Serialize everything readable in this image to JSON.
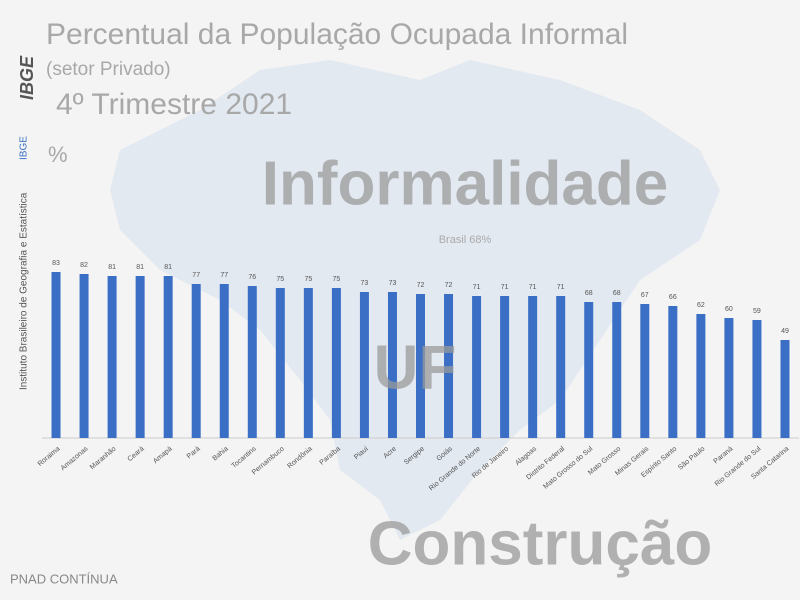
{
  "chart_data": {
    "type": "bar",
    "title": "Percentual da População Ocupada Informal",
    "subtitle": "(setor Privado)",
    "period": "4º Trimestre 2021",
    "y_label": "%",
    "annotation": "Brasil 68%",
    "overlay_texts": [
      "Informalidade",
      "UF",
      "Construção"
    ],
    "logo": "IBGE",
    "side_text": "Instituto Brasileiro de Geografia e Estatística",
    "side_logo": "IBGE",
    "footer": "PNAD CONTÍNUA",
    "categories": [
      "Roraima",
      "Amazonas",
      "Maranhão",
      "Ceará",
      "Amapá",
      "Pará",
      "Bahia",
      "Tocantins",
      "Pernambuco",
      "Rondônia",
      "Paraíba",
      "Piauí",
      "Acre",
      "Sergipe",
      "Goiás",
      "Rio Grande do Norte",
      "Rio de Janeiro",
      "Alagoas",
      "Distrito Federal",
      "Mato Grosso do Sul",
      "Mato Grosso",
      "Minas Gerais",
      "Espírito Santo",
      "São Paulo",
      "Paraná",
      "Rio Grande do Sul",
      "Santa Catarina"
    ],
    "values": [
      83,
      82,
      81,
      81,
      81,
      77,
      77,
      76,
      75,
      75,
      75,
      73,
      73,
      72,
      72,
      71,
      71,
      71,
      71,
      68,
      68,
      67,
      66,
      62,
      60,
      59,
      49
    ],
    "color": "#3b6fc6",
    "ylim": [
      0,
      94
    ]
  }
}
